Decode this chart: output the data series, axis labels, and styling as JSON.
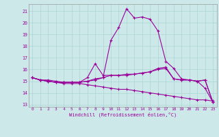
{
  "xlabel": "Windchill (Refroidissement éolien,°C)",
  "bg_color": "#cce8e8",
  "line_color": "#990099",
  "grid_color": "#aad4d4",
  "xmin": -0.5,
  "xmax": 23.5,
  "ymin": 12.8,
  "ymax": 21.6,
  "yticks": [
    13,
    14,
    15,
    16,
    17,
    18,
    19,
    20,
    21
  ],
  "xticks": [
    0,
    1,
    2,
    3,
    4,
    5,
    6,
    7,
    8,
    9,
    10,
    11,
    12,
    13,
    14,
    15,
    16,
    17,
    18,
    19,
    20,
    21,
    22,
    23
  ],
  "lines": [
    {
      "x": [
        0,
        1,
        2,
        3,
        4,
        5,
        6,
        7,
        8,
        9,
        10,
        11,
        12,
        13,
        14,
        15,
        16,
        17,
        18,
        19,
        20,
        21,
        22,
        23
      ],
      "y": [
        15.3,
        15.1,
        15.1,
        15.0,
        14.9,
        14.9,
        14.9,
        15.0,
        15.1,
        15.3,
        18.5,
        19.6,
        21.2,
        20.4,
        20.5,
        20.3,
        19.3,
        16.7,
        16.1,
        15.2,
        15.1,
        15.0,
        14.4,
        13.2
      ]
    },
    {
      "x": [
        0,
        1,
        2,
        3,
        4,
        5,
        6,
        7,
        8,
        9,
        10,
        11,
        12,
        13,
        14,
        15,
        16,
        17,
        18,
        19,
        20,
        21,
        22,
        23
      ],
      "y": [
        15.3,
        15.1,
        15.0,
        14.9,
        14.8,
        14.8,
        14.8,
        14.7,
        14.6,
        14.5,
        14.4,
        14.3,
        14.3,
        14.2,
        14.1,
        14.0,
        13.9,
        13.8,
        13.7,
        13.6,
        13.5,
        13.4,
        13.4,
        13.3
      ]
    },
    {
      "x": [
        0,
        1,
        2,
        3,
        4,
        5,
        6,
        7,
        8,
        9,
        10,
        11,
        12,
        13,
        14,
        15,
        16,
        17,
        18,
        19,
        20,
        21,
        22,
        23
      ],
      "y": [
        15.3,
        15.1,
        15.0,
        14.9,
        14.9,
        14.9,
        14.9,
        15.3,
        16.5,
        15.5,
        15.5,
        15.5,
        15.5,
        15.6,
        15.7,
        15.8,
        16.0,
        16.1,
        15.2,
        15.1,
        15.1,
        15.0,
        15.1,
        13.2
      ]
    },
    {
      "x": [
        0,
        1,
        2,
        3,
        4,
        5,
        6,
        7,
        8,
        9,
        10,
        11,
        12,
        13,
        14,
        15,
        16,
        17,
        18,
        19,
        20,
        21,
        22,
        23
      ],
      "y": [
        15.3,
        15.1,
        15.0,
        14.9,
        14.9,
        14.9,
        14.9,
        15.0,
        15.2,
        15.3,
        15.5,
        15.5,
        15.6,
        15.6,
        15.7,
        15.8,
        16.1,
        16.2,
        15.2,
        15.1,
        15.1,
        15.0,
        15.1,
        13.2
      ]
    }
  ]
}
